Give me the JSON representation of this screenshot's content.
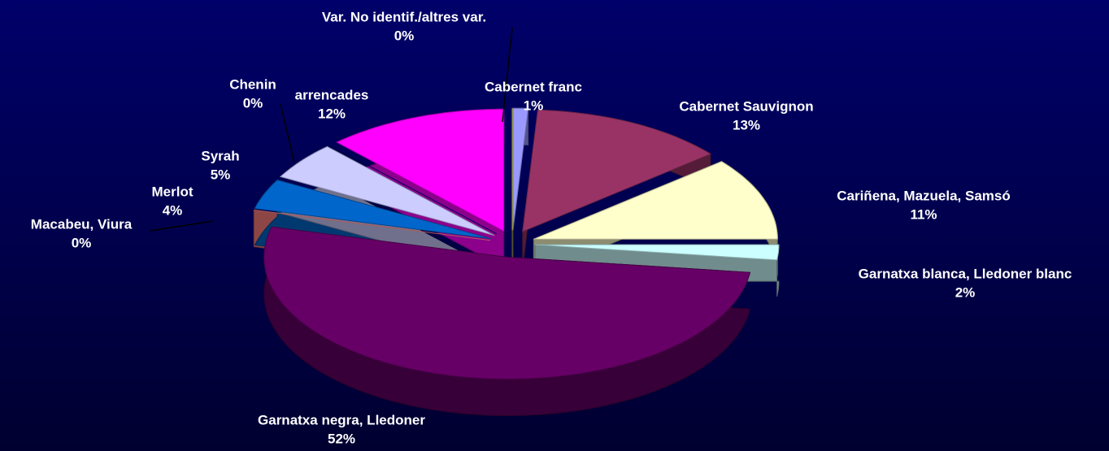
{
  "chart_data": {
    "type": "pie3d",
    "categories": [
      "Cabernet franc",
      "Cabernet Sauvignon",
      "Cariñena, Mazuela, Samsó",
      "Garnatxa blanca, Lledoner blanc",
      "Garnatxa negra, Lledoner",
      "Macabeu, Viura",
      "Merlot",
      "Syrah",
      "Chenin",
      "arrencades",
      "Var. No identif./altres var."
    ],
    "values": [
      1,
      13,
      11,
      2,
      52,
      0,
      4,
      5,
      0,
      12,
      0
    ],
    "value_labels": [
      "1%",
      "13%",
      "11%",
      "2%",
      "52%",
      "0%",
      "4%",
      "5%",
      "0%",
      "12%",
      "0%"
    ],
    "colors": [
      "#9999ff",
      "#993366",
      "#ffffcc",
      "#ccffff",
      "#660066",
      "#ff8080",
      "#0066cc",
      "#ccccff",
      "#000080",
      "#ff00ff",
      "#ffff00"
    ]
  }
}
